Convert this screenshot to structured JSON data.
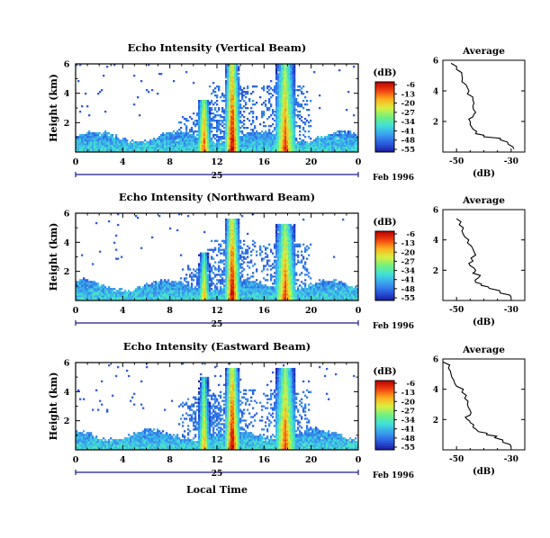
{
  "figure": {
    "date_label": "Feb 1996",
    "day_label": "25",
    "xlabel": "Local Time",
    "ylabel": "Height (km)",
    "colorbar_unit": "(dB)",
    "colorbar_ticks": [
      "-6",
      "-13",
      "-20",
      "-27",
      "-34",
      "-41",
      "-48",
      "-55"
    ],
    "colorbar_colors": [
      "#1a1aa0",
      "#2b5fe0",
      "#3aa0f0",
      "#40e0d8",
      "#70f080",
      "#d8f040",
      "#ffb020",
      "#f04010",
      "#b80000"
    ],
    "profile_title": "Average",
    "profile_xlabel": "(dB)"
  },
  "chart_data": [
    {
      "type": "heatmap",
      "title": "Echo Intensity (Vertical Beam)",
      "xlabel": "Local Time",
      "ylabel": "Height (km)",
      "x_ticks": [
        "0",
        "4",
        "8",
        "12",
        "16",
        "20",
        "0"
      ],
      "y_ticks": [
        "2",
        "4",
        "6"
      ],
      "xlim": [
        0,
        24
      ],
      "ylim": [
        0,
        6
      ],
      "clim": [
        -55,
        -6
      ],
      "features": [
        {
          "hour": 10.9,
          "top_km": 3.6,
          "peak_db": -13
        },
        {
          "hour": 13.3,
          "top_km": 6.0,
          "peak_db": -6
        },
        {
          "hour": 17.8,
          "top_km": 6.0,
          "peak_db": -13
        }
      ],
      "profile": {
        "title": "Average",
        "xlabel": "(dB)",
        "x_ticks": [
          "-50",
          "-30"
        ],
        "xlim": [
          -55,
          -25
        ],
        "y_ticks": [
          "2",
          "4",
          "6"
        ],
        "height_km": [
          0.2,
          0.5,
          0.8,
          1.0,
          1.2,
          1.5,
          1.8,
          2.0,
          2.3,
          2.6,
          3.0,
          3.4,
          3.8,
          4.2,
          4.6,
          5.0,
          5.4,
          5.8
        ],
        "db": [
          -29,
          -31,
          -34,
          -40,
          -43,
          -44,
          -45,
          -45,
          -44,
          -43,
          -44,
          -44,
          -46,
          -46,
          -48,
          -48,
          -50,
          -52
        ]
      }
    },
    {
      "type": "heatmap",
      "title": "Echo Intensity (Northward Beam)",
      "xlabel": "Local Time",
      "ylabel": "Height (km)",
      "x_ticks": [
        "0",
        "4",
        "8",
        "12",
        "16",
        "20",
        "0"
      ],
      "y_ticks": [
        "2",
        "4",
        "6"
      ],
      "xlim": [
        0,
        24
      ],
      "ylim": [
        0,
        6
      ],
      "clim": [
        -55,
        -6
      ],
      "features": [
        {
          "hour": 10.9,
          "top_km": 3.3,
          "peak_db": -20
        },
        {
          "hour": 13.3,
          "top_km": 5.6,
          "peak_db": -6
        },
        {
          "hour": 17.8,
          "top_km": 5.3,
          "peak_db": -13
        }
      ],
      "profile": {
        "title": "Average",
        "xlabel": "(dB)",
        "x_ticks": [
          "-50",
          "-30"
        ],
        "xlim": [
          -55,
          -25
        ],
        "y_ticks": [
          "2",
          "4",
          "6"
        ],
        "height_km": [
          0.2,
          0.5,
          0.8,
          1.0,
          1.2,
          1.5,
          1.8,
          2.0,
          2.3,
          2.6,
          3.0,
          3.4,
          3.8,
          4.2,
          4.6,
          5.0,
          5.4
        ],
        "db": [
          -30,
          -34,
          -38,
          -41,
          -43,
          -42,
          -44,
          -43,
          -45,
          -44,
          -43,
          -44,
          -46,
          -47,
          -48,
          -49,
          -50
        ]
      }
    },
    {
      "type": "heatmap",
      "title": "Echo Intensity (Eastward Beam)",
      "xlabel": "Local Time",
      "ylabel": "Height (km)",
      "x_ticks": [
        "0",
        "4",
        "8",
        "12",
        "16",
        "20",
        "0"
      ],
      "y_ticks": [
        "2",
        "4",
        "6"
      ],
      "xlim": [
        0,
        24
      ],
      "ylim": [
        0,
        6
      ],
      "clim": [
        -55,
        -6
      ],
      "features": [
        {
          "hour": 10.9,
          "top_km": 5.0,
          "peak_db": -20
        },
        {
          "hour": 13.3,
          "top_km": 5.6,
          "peak_db": -6
        },
        {
          "hour": 17.8,
          "top_km": 5.6,
          "peak_db": -13
        }
      ],
      "profile": {
        "title": "Average",
        "xlabel": "(dB)",
        "x_ticks": [
          "-50",
          "-30"
        ],
        "xlim": [
          -55,
          -25
        ],
        "y_ticks": [
          "2",
          "4",
          "6"
        ],
        "height_km": [
          0.2,
          0.5,
          0.8,
          1.0,
          1.2,
          1.5,
          1.8,
          2.0,
          2.3,
          2.6,
          3.0,
          3.4,
          3.8,
          4.2,
          4.6,
          5.0,
          5.4,
          5.8
        ],
        "db": [
          -30,
          -33,
          -36,
          -39,
          -42,
          -44,
          -45,
          -46,
          -45,
          -45,
          -46,
          -47,
          -48,
          -50,
          -51,
          -52,
          -53,
          -55
        ]
      }
    }
  ]
}
